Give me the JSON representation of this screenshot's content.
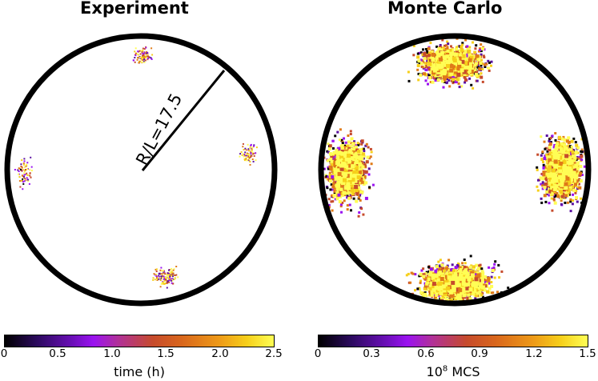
{
  "panels": {
    "left": {
      "title": "Experiment",
      "radius_label": "R/L=17.5",
      "colorbar": {
        "ticks": [
          "0",
          "0.5",
          "1.0",
          "1.5",
          "2.0",
          "2.5"
        ],
        "label": "time (h)"
      }
    },
    "right": {
      "title": "Monte Carlo",
      "colorbar": {
        "ticks": [
          "0",
          "0.3",
          "0.6",
          "0.9",
          "1.2",
          "1.5"
        ],
        "label_base": "10",
        "label_exp": "8",
        "label_unit": " MCS"
      }
    }
  },
  "colormap": [
    "#000000",
    "#5a0fa0",
    "#9a12f0",
    "#c64b2c",
    "#e07a18",
    "#f6cf1a",
    "#fffe55"
  ]
}
